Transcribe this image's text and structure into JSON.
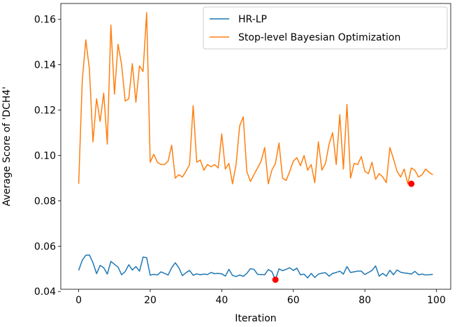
{
  "chart_data": {
    "type": "line",
    "title": "",
    "xlabel": "Iteration",
    "ylabel": "Average Score of 'DCH4'",
    "xlim": [
      -5,
      104
    ],
    "ylim": [
      0.041,
      0.167
    ],
    "xticks": [
      0,
      20,
      40,
      60,
      80,
      100
    ],
    "yticks": [
      0.04,
      0.06,
      0.08,
      0.1,
      0.12,
      0.14,
      0.16
    ],
    "ytick_labels": [
      "0.04",
      "0.06",
      "0.08",
      "0.10",
      "0.12",
      "0.14",
      "0.16"
    ],
    "xtick_labels": [
      "0",
      "20",
      "40",
      "60",
      "80",
      "100"
    ],
    "grid": false,
    "legend_position": "top-right",
    "series": [
      {
        "name": "HR-LP",
        "color": "#1f77b4",
        "x": [
          0,
          1,
          2,
          3,
          4,
          5,
          6,
          7,
          8,
          9,
          10,
          11,
          12,
          13,
          14,
          15,
          16,
          17,
          18,
          19,
          20,
          21,
          22,
          23,
          24,
          25,
          26,
          27,
          28,
          29,
          30,
          31,
          32,
          33,
          34,
          35,
          36,
          37,
          38,
          39,
          40,
          41,
          42,
          43,
          44,
          45,
          46,
          47,
          48,
          49,
          50,
          51,
          52,
          53,
          54,
          55,
          56,
          57,
          58,
          59,
          60,
          61,
          62,
          63,
          64,
          65,
          66,
          67,
          68,
          69,
          70,
          71,
          72,
          73,
          74,
          75,
          76,
          77,
          78,
          79,
          80,
          81,
          82,
          83,
          84,
          85,
          86,
          87,
          88,
          89,
          90,
          91,
          92,
          93,
          94,
          95,
          96,
          97,
          98,
          99
        ],
        "values": [
          0.0493,
          0.0538,
          0.056,
          0.0561,
          0.0527,
          0.0479,
          0.0515,
          0.0505,
          0.0477,
          0.0533,
          0.052,
          0.0508,
          0.0474,
          0.0488,
          0.0518,
          0.0495,
          0.051,
          0.049,
          0.0552,
          0.0549,
          0.0472,
          0.0476,
          0.0473,
          0.0487,
          0.048,
          0.0473,
          0.0505,
          0.0527,
          0.0505,
          0.047,
          0.0483,
          0.0493,
          0.0472,
          0.0478,
          0.0474,
          0.0477,
          0.0475,
          0.0484,
          0.0479,
          0.048,
          0.0478,
          0.0468,
          0.0498,
          0.0471,
          0.0466,
          0.0473,
          0.0467,
          0.048,
          0.0501,
          0.0498,
          0.0476,
          0.0475,
          0.0474,
          0.0497,
          0.0488,
          0.0452,
          0.05,
          0.0492,
          0.0498,
          0.0505,
          0.0493,
          0.0503,
          0.0474,
          0.0477,
          0.046,
          0.048,
          0.0462,
          0.0477,
          0.0481,
          0.0483,
          0.0468,
          0.048,
          0.0484,
          0.049,
          0.0477,
          0.051,
          0.0484,
          0.0487,
          0.049,
          0.049,
          0.0475,
          0.0484,
          0.0493,
          0.0513,
          0.0468,
          0.048,
          0.0468,
          0.0494,
          0.0474,
          0.0495,
          0.0485,
          0.0482,
          0.048,
          0.0477,
          0.0489,
          0.0474,
          0.0477,
          0.0473,
          0.0474,
          0.0476
        ]
      },
      {
        "name": "Stop-level Bayesian Optimization",
        "color": "#ff7f0e",
        "x": [
          0,
          1,
          2,
          3,
          4,
          5,
          6,
          7,
          8,
          9,
          10,
          11,
          12,
          13,
          14,
          15,
          16,
          17,
          18,
          19,
          20,
          21,
          22,
          23,
          24,
          25,
          26,
          27,
          28,
          29,
          30,
          31,
          32,
          33,
          34,
          35,
          36,
          37,
          38,
          39,
          40,
          41,
          42,
          43,
          44,
          45,
          46,
          47,
          48,
          49,
          50,
          51,
          52,
          53,
          54,
          55,
          56,
          57,
          58,
          59,
          60,
          61,
          62,
          63,
          64,
          65,
          66,
          67,
          68,
          69,
          70,
          71,
          72,
          73,
          74,
          75,
          76,
          77,
          78,
          79,
          80,
          81,
          82,
          83,
          84,
          85,
          86,
          87,
          88,
          89,
          90,
          91,
          92,
          93,
          94,
          95,
          96,
          97,
          98,
          99
        ],
        "values": [
          0.0875,
          0.133,
          0.151,
          0.138,
          0.106,
          0.125,
          0.115,
          0.1275,
          0.105,
          0.1575,
          0.127,
          0.149,
          0.14,
          0.124,
          0.125,
          0.1405,
          0.1235,
          0.1395,
          0.137,
          0.163,
          0.097,
          0.1005,
          0.097,
          0.096,
          0.096,
          0.0975,
          0.1045,
          0.09,
          0.0915,
          0.0905,
          0.093,
          0.096,
          0.122,
          0.097,
          0.098,
          0.0935,
          0.096,
          0.095,
          0.096,
          0.0945,
          0.1095,
          0.094,
          0.0965,
          0.0875,
          0.096,
          0.113,
          0.117,
          0.093,
          0.0885,
          0.0915,
          0.0945,
          0.0975,
          0.1035,
          0.0875,
          0.0935,
          0.0965,
          0.1055,
          0.09,
          0.089,
          0.093,
          0.0975,
          0.099,
          0.0955,
          0.1,
          0.0935,
          0.096,
          0.088,
          0.106,
          0.0935,
          0.0965,
          0.105,
          0.11,
          0.096,
          0.118,
          0.094,
          0.1225,
          0.09,
          0.0965,
          0.096,
          0.0995,
          0.093,
          0.092,
          0.097,
          0.0895,
          0.092,
          0.0905,
          0.088,
          0.1035,
          0.0985,
          0.093,
          0.0905,
          0.094,
          0.0875,
          0.0945,
          0.0935,
          0.0905,
          0.0915,
          0.094,
          0.0925,
          0.0915
        ]
      }
    ],
    "markers": [
      {
        "x": 55,
        "y": 0.0452,
        "color": "#ff0000"
      },
      {
        "x": 93,
        "y": 0.0875,
        "color": "#ff0000"
      }
    ]
  }
}
